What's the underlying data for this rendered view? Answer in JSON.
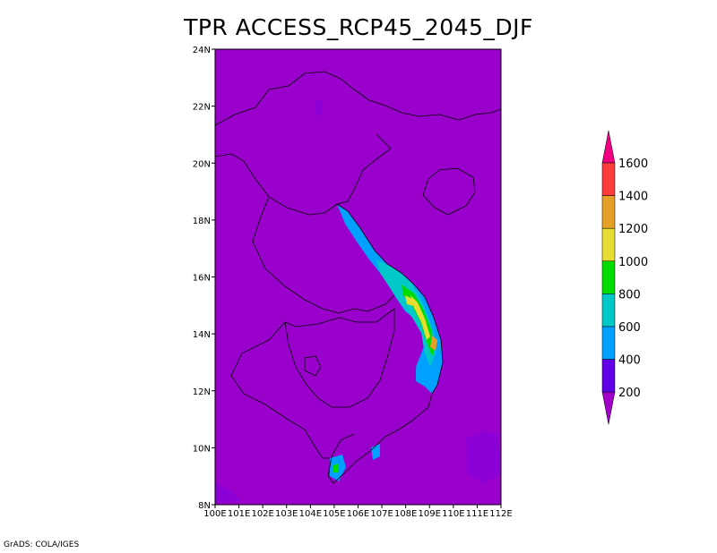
{
  "title": "TPR ACCESS_RCP45_2045_DJF",
  "credit": "GrADS: COLA/IGES",
  "map": {
    "background_color": "#9900cc",
    "x_ticks": [
      "100E",
      "101E",
      "102E",
      "103E",
      "104E",
      "105E",
      "106E",
      "107E",
      "108E",
      "109E",
      "110E",
      "111E",
      "112E"
    ],
    "y_ticks": [
      "24N",
      "22N",
      "20N",
      "18N",
      "16N",
      "14N",
      "12N",
      "10N",
      "8N"
    ],
    "lon_range": [
      100,
      112
    ],
    "lat_range": [
      8,
      24
    ]
  },
  "colorbar": {
    "levels": [
      "1600",
      "1400",
      "1200",
      "1000",
      "800",
      "600",
      "400",
      "200"
    ],
    "colors": [
      "#f00080",
      "#fa3c3c",
      "#e6a028",
      "#e6dc32",
      "#00dc00",
      "#00c8c8",
      "#00a0ff",
      "#5f00e6",
      "#a000c8"
    ]
  }
}
